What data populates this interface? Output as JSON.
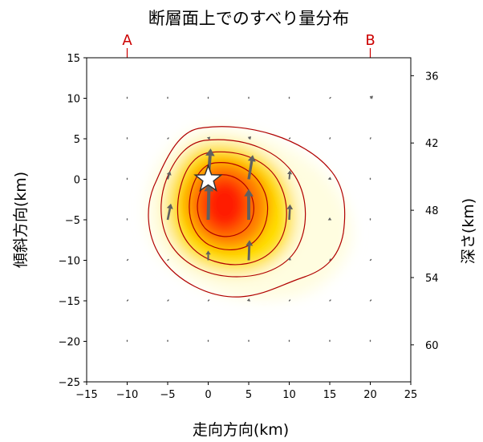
{
  "chart_data": {
    "type": "heatmap",
    "title": "断層面上でのすべり量分布",
    "xlabel": "走向方向(km)",
    "ylabel": "傾斜方向(km)",
    "y2label": "深さ(km)",
    "xlim": [
      -15,
      25
    ],
    "ylim": [
      -25,
      15
    ],
    "y2lim": [
      63.3,
      34.4
    ],
    "xticks": [
      "−15",
      "−10",
      "−5",
      "0",
      "5",
      "10",
      "15",
      "20",
      "25"
    ],
    "yticks": [
      "15",
      "10",
      "5",
      "0",
      "−5",
      "−10",
      "−15",
      "−20",
      "−25"
    ],
    "y2ticks": [
      "36",
      "42",
      "48",
      "54",
      "60"
    ],
    "strike_markers": [
      {
        "label": "A",
        "x": -10
      },
      {
        "label": "B",
        "x": 20
      }
    ],
    "hypocenter": {
      "x": 0,
      "y": 0
    },
    "contour_levels": [
      0.15,
      0.3,
      0.5,
      0.7,
      0.88
    ],
    "colors": {
      "low": "#fffde0",
      "mid": "#ffe000",
      "high": "#ff7a00",
      "peak": "#ff1a00",
      "contour": "#b00000",
      "arrow": "#606060",
      "marker": "#cc0000"
    },
    "slip_vectors": [
      {
        "x": -10,
        "y": 10,
        "dx": 0,
        "dy": 0.12
      },
      {
        "x": -5,
        "y": 10,
        "dx": 0,
        "dy": 0.12
      },
      {
        "x": 0,
        "y": 10,
        "dx": 0,
        "dy": 0.12
      },
      {
        "x": 5,
        "y": 10,
        "dx": 0,
        "dy": 0.12
      },
      {
        "x": 10,
        "y": 10,
        "dx": 0,
        "dy": 0.12
      },
      {
        "x": 15,
        "y": 10,
        "dx": 0.1,
        "dy": 0.1
      },
      {
        "x": 20,
        "y": 10,
        "dx": 0.35,
        "dy": 0.3
      },
      {
        "x": -10,
        "y": 5,
        "dx": 0,
        "dy": 0.12
      },
      {
        "x": -5,
        "y": 5,
        "dx": 0.1,
        "dy": 0.1
      },
      {
        "x": 0,
        "y": 5,
        "dx": 0.25,
        "dy": 0.25
      },
      {
        "x": 5,
        "y": 5,
        "dx": 0.3,
        "dy": 0.3
      },
      {
        "x": 10,
        "y": 5,
        "dx": 0.1,
        "dy": 0.1
      },
      {
        "x": 15,
        "y": 5,
        "dx": 0.05,
        "dy": 0.12
      },
      {
        "x": 20,
        "y": 5,
        "dx": 0.05,
        "dy": 0.12
      },
      {
        "x": -10,
        "y": 0,
        "dx": 0,
        "dy": 0.12
      },
      {
        "x": -5,
        "y": 0,
        "dx": 0.3,
        "dy": 1.0
      },
      {
        "x": 0,
        "y": 0,
        "dx": 0.3,
        "dy": 3.8
      },
      {
        "x": 5,
        "y": 0,
        "dx": 0.5,
        "dy": 3.0
      },
      {
        "x": 10,
        "y": 0,
        "dx": 0.1,
        "dy": 1.1
      },
      {
        "x": 15,
        "y": 0,
        "dx": 0.05,
        "dy": 0.3
      },
      {
        "x": 20,
        "y": 0,
        "dx": 0,
        "dy": 0.12
      },
      {
        "x": -10,
        "y": -5,
        "dx": 0,
        "dy": 0.12
      },
      {
        "x": -5,
        "y": -5,
        "dx": 0.4,
        "dy": 2.0
      },
      {
        "x": 0,
        "y": -5,
        "dx": 0.1,
        "dy": 4.5
      },
      {
        "x": 5,
        "y": -5,
        "dx": 0,
        "dy": 3.8
      },
      {
        "x": 10,
        "y": -5,
        "dx": 0.1,
        "dy": 1.9
      },
      {
        "x": 15,
        "y": -5,
        "dx": 0,
        "dy": 0.3
      },
      {
        "x": 20,
        "y": -5,
        "dx": 0,
        "dy": 0.12
      },
      {
        "x": -10,
        "y": -10,
        "dx": 0.1,
        "dy": 0.1
      },
      {
        "x": -5,
        "y": -10,
        "dx": 0.1,
        "dy": 0.1
      },
      {
        "x": 0,
        "y": -10,
        "dx": 0,
        "dy": 1.2
      },
      {
        "x": 5,
        "y": -10,
        "dx": 0.1,
        "dy": 2.5
      },
      {
        "x": 10,
        "y": -10,
        "dx": 0.1,
        "dy": 0.4
      },
      {
        "x": 15,
        "y": -10,
        "dx": 0.1,
        "dy": 0.15
      },
      {
        "x": 20,
        "y": -10,
        "dx": 0.1,
        "dy": 0.1
      },
      {
        "x": -10,
        "y": -15,
        "dx": 0.1,
        "dy": 0.1
      },
      {
        "x": -5,
        "y": -15,
        "dx": 0.1,
        "dy": 0.1
      },
      {
        "x": 0,
        "y": -15,
        "dx": 0.1,
        "dy": 0.1
      },
      {
        "x": 5,
        "y": -15,
        "dx": 0.05,
        "dy": 0.3
      },
      {
        "x": 10,
        "y": -15,
        "dx": 0.1,
        "dy": 0.1
      },
      {
        "x": 15,
        "y": -15,
        "dx": 0.1,
        "dy": 0.1
      },
      {
        "x": 20,
        "y": -15,
        "dx": 0.1,
        "dy": 0.1
      },
      {
        "x": -10,
        "y": -20,
        "dx": 0,
        "dy": 0.12
      },
      {
        "x": -5,
        "y": -20,
        "dx": 0,
        "dy": 0.12
      },
      {
        "x": 0,
        "y": -20,
        "dx": 0,
        "dy": 0.12
      },
      {
        "x": 5,
        "y": -20,
        "dx": 0,
        "dy": 0.12
      },
      {
        "x": 10,
        "y": -20,
        "dx": 0,
        "dy": 0.12
      },
      {
        "x": 15,
        "y": -20,
        "dx": 0,
        "dy": 0.12
      },
      {
        "x": 20,
        "y": -20,
        "dx": 0,
        "dy": 0.12
      }
    ]
  }
}
